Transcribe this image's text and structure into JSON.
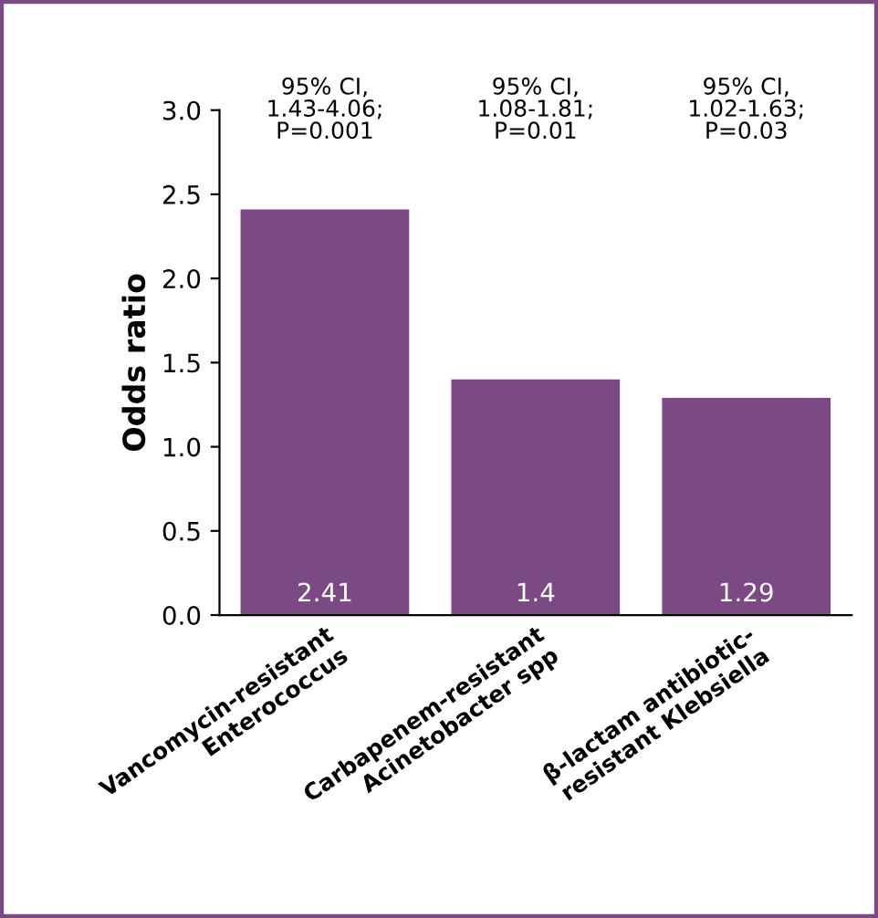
{
  "chart_data": {
    "type": "bar",
    "ylabel": "Odds ratio",
    "categories": [
      "Vancomycin-resistant\nEnterococcus",
      "Carbapenem-resistant\nAcinetobacter spp",
      "β-lactam antibiotic-\nresistant Klebsiella"
    ],
    "values": [
      2.41,
      1.4,
      1.29
    ],
    "color": "#7b4a85",
    "ylim": [
      0,
      3
    ],
    "yticks": [
      {
        "value": 0,
        "label": "0.0"
      },
      {
        "value": 0.5,
        "label": "0.5"
      },
      {
        "value": 1,
        "label": "1.0"
      },
      {
        "value": 1.5,
        "label": "1.5"
      },
      {
        "value": 2,
        "label": "2.0"
      },
      {
        "value": 2.5,
        "label": "2.5"
      },
      {
        "value": 3,
        "label": "3.0"
      }
    ],
    "data_labels": true,
    "grid": false,
    "legend": false,
    "annotations": [
      "95% CI,\n1.43-4.06;\nP=0.001",
      "95% CI,\n1.08-1.81;\nP=0.01",
      "95% CI,\n1.02-1.63;\nP=0.03"
    ]
  }
}
